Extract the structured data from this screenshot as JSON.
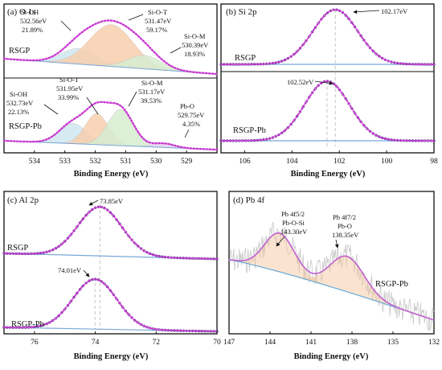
{
  "figure": {
    "colors": {
      "axis": "#111111",
      "fit_envelope": "#c83ad0",
      "raw_points": "#3a2a7a",
      "baseline": "#7aa8d8",
      "dashed_guide": "#b5b5b5",
      "fill_si_oh": "#cfe6f0",
      "fill_si_o_t": "#f7cfae",
      "fill_si_o_m": "#d6ecd0",
      "fill_pb_o": "#e6d4f2",
      "pb_fit": "#c060d0",
      "pb_bg": "#66aad8",
      "pb_noise": "#c8c8c8"
    }
  },
  "chart_data": [
    {
      "id": "a",
      "type": "line",
      "title": "(a) O 1s",
      "xlabel": "Binding Energy (eV)",
      "xlim": [
        535,
        528
      ],
      "x_reversed": true,
      "xticks": [
        534,
        533,
        532,
        531,
        530,
        529
      ],
      "subplots": [
        {
          "label": "RSGP",
          "components": [
            {
              "name": "Si-OH",
              "center": 532.56,
              "percent": 21.89,
              "text": [
                "Si-OH",
                "532.56eV",
                "21.89%"
              ]
            },
            {
              "name": "Si-O-T",
              "center": 531.47,
              "percent": 59.17,
              "text": [
                "Si-O-T",
                "531.47eV",
                "59.17%"
              ]
            },
            {
              "name": "Si-O-M",
              "center": 530.39,
              "percent": 18.93,
              "text": [
                "Si-O-M",
                "530.39eV",
                "18.93%"
              ]
            }
          ]
        },
        {
          "label": "RSGP-Pb",
          "components": [
            {
              "name": "Si-OH",
              "center": 532.73,
              "percent": 22.13,
              "text": [
                "Si-OH",
                "532.73eV",
                "22.13%"
              ]
            },
            {
              "name": "Si-O-T",
              "center": 531.95,
              "percent": 33.99,
              "text": [
                "Si-O-T",
                "531.95eV",
                "33.99%"
              ]
            },
            {
              "name": "Si-O-M",
              "center": 531.17,
              "percent": 39.53,
              "text": [
                "Si-O-M",
                "531.17eV",
                "39.53%"
              ]
            },
            {
              "name": "Pb-O",
              "center": 529.75,
              "percent": 4.35,
              "text": [
                "Pb-O",
                "529.75eV",
                "4.35%"
              ]
            }
          ]
        }
      ]
    },
    {
      "id": "b",
      "type": "line",
      "title": "(b) Si 2p",
      "xlabel": "Binding Energy (eV)",
      "xlim": [
        107,
        98
      ],
      "x_reversed": true,
      "xticks": [
        106,
        104,
        102,
        100,
        98
      ],
      "subplots": [
        {
          "label": "RSGP",
          "peak": 102.17,
          "peak_label": "102.17eV"
        },
        {
          "label": "RSGP-Pb",
          "peak": 102.52,
          "peak_label": "102.52eV"
        }
      ]
    },
    {
      "id": "c",
      "type": "line",
      "title": "(c) Al 2p",
      "xlabel": "Binding Energy (eV)",
      "xlim": [
        77,
        70
      ],
      "x_reversed": true,
      "xticks": [
        76,
        74,
        72,
        70
      ],
      "subplots": [
        {
          "label": "RSGP",
          "peak": 73.85,
          "peak_label": "73.85eV"
        },
        {
          "label": "RSGP-Pb",
          "peak": 74.01,
          "peak_label": "74.01eV"
        }
      ]
    },
    {
      "id": "d",
      "type": "line",
      "title": "(d) Pb 4f",
      "xlabel": "Binding Energy (eV)",
      "xlim": [
        147,
        132
      ],
      "x_reversed": true,
      "xticks": [
        147,
        144,
        141,
        138,
        135,
        132
      ],
      "sample_label": "RSGP-Pb",
      "peaks": [
        {
          "name": "Pb 4f5/2",
          "center": 143.3,
          "text": [
            "Pb 4f5/2",
            "Pb-O-Si",
            "143.30eV"
          ]
        },
        {
          "name": "Pb 4f7/2",
          "center": 138.35,
          "text": [
            "Pb 4f7/2",
            "Pb-O",
            "138.35eV"
          ]
        }
      ]
    }
  ]
}
